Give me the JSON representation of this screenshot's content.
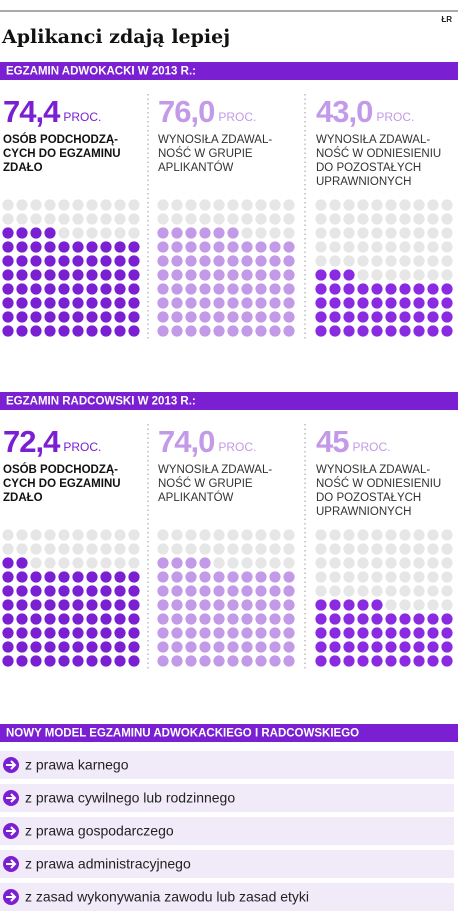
{
  "top_label": "ŁR",
  "title": "Aplikanci zdają lepiej",
  "sections": [
    {
      "header": "EGZAMIN ADWOKACKI W 2013 R.:",
      "stats": [
        {
          "value": 74.4,
          "value_label": "74,4",
          "unit": "PROC.",
          "lines": [
            "OSÓB PODCHODZĄ-",
            "CYCH DO EGZAMINU",
            "ZDAŁO"
          ]
        },
        {
          "value": 76.0,
          "value_label": "76,0",
          "unit": "PROC.",
          "lines": [
            "WYNOSIŁA ZDAWAL-",
            "NOŚĆ W GRUPIE",
            "APLIKANTÓW"
          ]
        },
        {
          "value": 43.0,
          "value_label": "43,0",
          "unit": "PROC.",
          "lines": [
            "WYNOSIŁA ZDAWAL-",
            "NOŚĆ W ODNIESIENIU",
            "DO POZOSTAŁYCH",
            "UPRAWNIONYCH"
          ]
        }
      ]
    },
    {
      "header": "EGZAMIN RADCOWSKI W 2013 R.:",
      "stats": [
        {
          "value": 72.4,
          "value_label": "72,4",
          "unit": "PROC.",
          "lines": [
            "OSÓB PODCHODZĄ-",
            "CYCH DO EGZAMINU",
            "ZDAŁO"
          ]
        },
        {
          "value": 74.0,
          "value_label": "74,0",
          "unit": "PROC.",
          "lines": [
            "WYNOSIŁA ZDAWAL-",
            "NOŚĆ W GRUPIE",
            "APLIKANTÓW"
          ]
        },
        {
          "value": 45,
          "unit": "PROC.",
          "lines": [
            "WYNOSIŁA ZDAWAL-",
            "NOŚĆ W ODNIESIENIU",
            "DO POZOSTAŁYCH",
            "UPRAWNIONYCH"
          ]
        }
      ]
    }
  ],
  "list": {
    "header": "NOWY MODEL EGZAMINU ADWOKACKIEGO I RADCOWSKIEGO",
    "items": [
      "z prawa karnego",
      "z prawa cywilnego lub rodzinnego",
      "z prawa gospodarczego",
      "z prawa administracyjnego",
      "z zasad wykonywania zawodu lub zasad etyki"
    ]
  }
}
